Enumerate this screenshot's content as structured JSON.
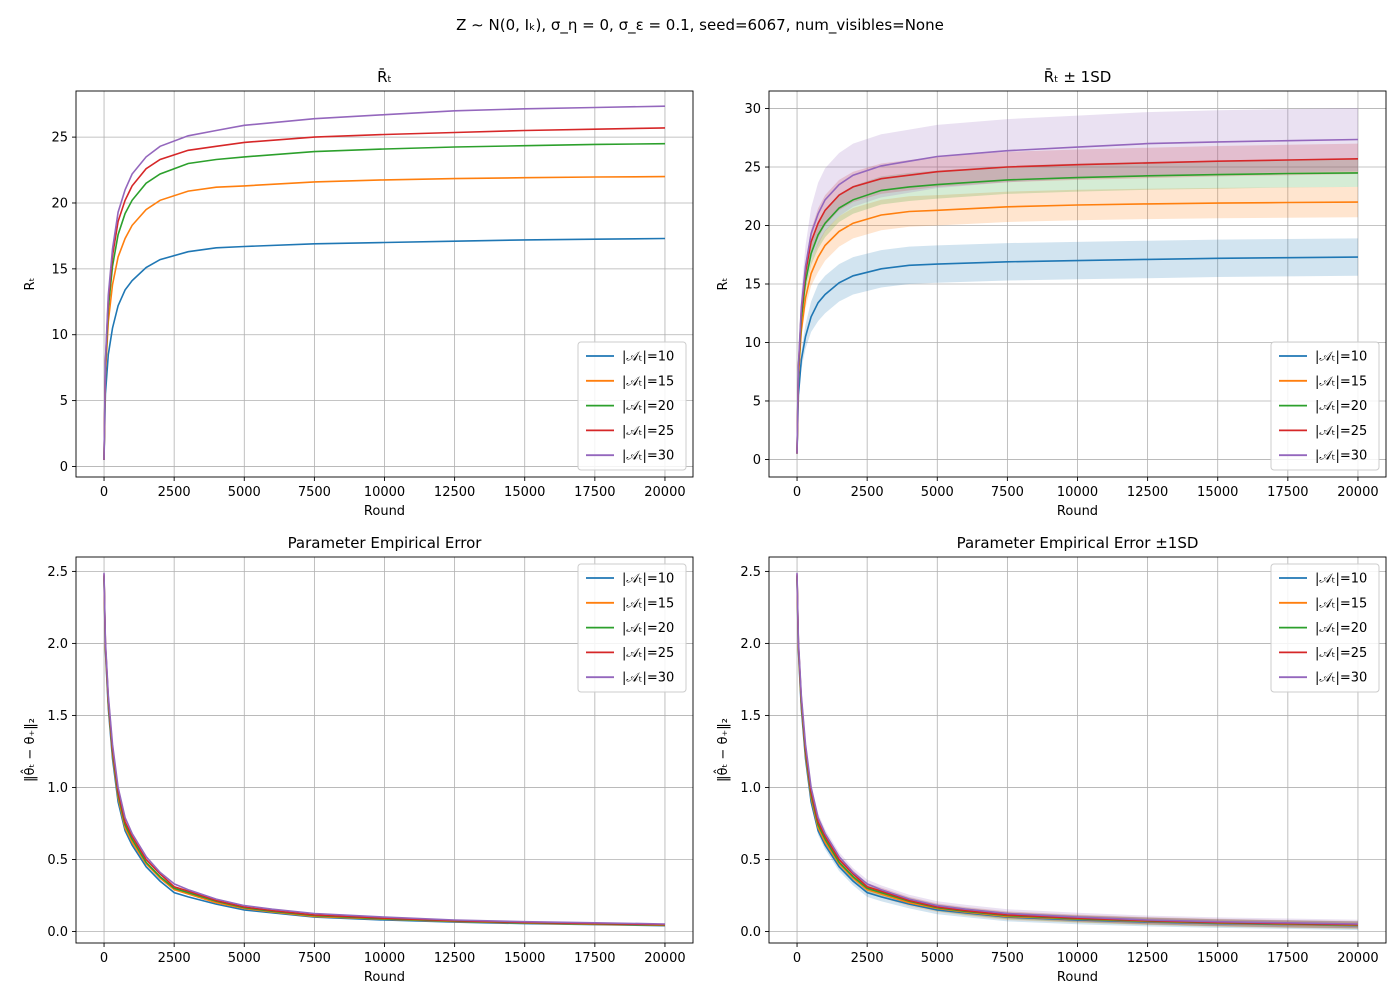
{
  "suptitle": "Z ∼ N(0, Iₖ), σ_η = 0, σ_ε = 0.1, seed=6067, num_visibles=None",
  "colors": [
    "#1f77b4",
    "#ff7f0e",
    "#2ca02c",
    "#d62728",
    "#9467bd"
  ],
  "chart_data": [
    {
      "type": "line",
      "title": "R̄ₜ",
      "xlabel": "Round",
      "ylabel": "Rₜ",
      "xlim": [
        -1000,
        21000
      ],
      "ylim": [
        -0.8,
        28.5
      ],
      "xticks": [
        0,
        2500,
        5000,
        7500,
        10000,
        12500,
        15000,
        17500,
        20000
      ],
      "yticks": [
        0,
        5,
        10,
        15,
        20,
        25
      ],
      "grid": true,
      "legend": "lower-right",
      "band": false,
      "x": [
        0,
        50,
        150,
        300,
        500,
        750,
        1000,
        1500,
        2000,
        3000,
        4000,
        5000,
        7500,
        10000,
        12500,
        15000,
        17500,
        20000
      ],
      "series": [
        {
          "name": "|𝒜ₜ|=10",
          "values": [
            0.5,
            5.5,
            8.5,
            10.5,
            12.2,
            13.4,
            14.1,
            15.1,
            15.7,
            16.3,
            16.6,
            16.7,
            16.9,
            17.0,
            17.1,
            17.2,
            17.25,
            17.3
          ]
        },
        {
          "name": "|𝒜ₜ|=15",
          "values": [
            0.5,
            7.0,
            11.0,
            13.8,
            15.9,
            17.3,
            18.3,
            19.5,
            20.2,
            20.9,
            21.2,
            21.3,
            21.6,
            21.75,
            21.85,
            21.92,
            21.97,
            22.0
          ]
        },
        {
          "name": "|𝒜ₜ|=20",
          "values": [
            0.5,
            7.5,
            12.0,
            15.2,
            17.6,
            19.2,
            20.2,
            21.5,
            22.2,
            23.0,
            23.3,
            23.5,
            23.9,
            24.1,
            24.25,
            24.35,
            24.45,
            24.5
          ]
        },
        {
          "name": "|𝒜ₜ|=25",
          "values": [
            0.5,
            7.8,
            12.6,
            16.0,
            18.6,
            20.2,
            21.3,
            22.6,
            23.3,
            24.0,
            24.3,
            24.6,
            25.0,
            25.2,
            25.35,
            25.5,
            25.6,
            25.7
          ]
        },
        {
          "name": "|𝒜ₜ|=30",
          "values": [
            0.5,
            8.0,
            13.0,
            16.5,
            19.3,
            21.0,
            22.2,
            23.5,
            24.3,
            25.1,
            25.5,
            25.9,
            26.4,
            26.7,
            27.0,
            27.15,
            27.25,
            27.35
          ]
        }
      ]
    },
    {
      "type": "line",
      "title": "R̄ₜ ± 1SD",
      "xlabel": "Round",
      "ylabel": "Rₜ",
      "xlim": [
        -1000,
        21000
      ],
      "ylim": [
        -1.5,
        31.5
      ],
      "xticks": [
        0,
        2500,
        5000,
        7500,
        10000,
        12500,
        15000,
        17500,
        20000
      ],
      "yticks": [
        0,
        5,
        10,
        15,
        20,
        25,
        30
      ],
      "grid": true,
      "legend": "lower-right",
      "band": true,
      "band_sd": [
        1.6,
        1.3,
        1.2,
        1.3,
        2.7
      ],
      "x": [
        0,
        50,
        150,
        300,
        500,
        750,
        1000,
        1500,
        2000,
        3000,
        4000,
        5000,
        7500,
        10000,
        12500,
        15000,
        17500,
        20000
      ],
      "series": [
        {
          "name": "|𝒜ₜ|=10",
          "values": [
            0.5,
            5.5,
            8.5,
            10.5,
            12.2,
            13.4,
            14.1,
            15.1,
            15.7,
            16.3,
            16.6,
            16.7,
            16.9,
            17.0,
            17.1,
            17.2,
            17.25,
            17.3
          ]
        },
        {
          "name": "|𝒜ₜ|=15",
          "values": [
            0.5,
            7.0,
            11.0,
            13.8,
            15.9,
            17.3,
            18.3,
            19.5,
            20.2,
            20.9,
            21.2,
            21.3,
            21.6,
            21.75,
            21.85,
            21.92,
            21.97,
            22.0
          ]
        },
        {
          "name": "|𝒜ₜ|=20",
          "values": [
            0.5,
            7.5,
            12.0,
            15.2,
            17.6,
            19.2,
            20.2,
            21.5,
            22.2,
            23.0,
            23.3,
            23.5,
            23.9,
            24.1,
            24.25,
            24.35,
            24.45,
            24.5
          ]
        },
        {
          "name": "|𝒜ₜ|=25",
          "values": [
            0.5,
            7.8,
            12.6,
            16.0,
            18.6,
            20.2,
            21.3,
            22.6,
            23.3,
            24.0,
            24.3,
            24.6,
            25.0,
            25.2,
            25.35,
            25.5,
            25.6,
            25.7
          ]
        },
        {
          "name": "|𝒜ₜ|=30",
          "values": [
            0.5,
            8.0,
            13.0,
            16.5,
            19.3,
            21.0,
            22.2,
            23.5,
            24.3,
            25.1,
            25.5,
            25.9,
            26.4,
            26.7,
            27.0,
            27.15,
            27.25,
            27.35
          ]
        }
      ]
    },
    {
      "type": "line",
      "title": "Parameter Empirical Error",
      "xlabel": "Round",
      "ylabel": "‖θ̂ₜ − θ₊‖₂",
      "xlim": [
        -1000,
        21000
      ],
      "ylim": [
        -0.08,
        2.6
      ],
      "xticks": [
        0,
        2500,
        5000,
        7500,
        10000,
        12500,
        15000,
        17500,
        20000
      ],
      "yticks": [
        0.0,
        0.5,
        1.0,
        1.5,
        2.0,
        2.5
      ],
      "grid": true,
      "legend": "upper-right",
      "band": false,
      "x": [
        0,
        50,
        150,
        300,
        500,
        750,
        1000,
        1500,
        2000,
        2500,
        3000,
        4000,
        5000,
        6000,
        7500,
        10000,
        12500,
        15000,
        17500,
        20000
      ],
      "series": [
        {
          "name": "|𝒜ₜ|=10",
          "values": [
            2.45,
            1.95,
            1.55,
            1.2,
            0.9,
            0.7,
            0.6,
            0.45,
            0.35,
            0.27,
            0.24,
            0.19,
            0.15,
            0.13,
            0.1,
            0.08,
            0.065,
            0.055,
            0.048,
            0.04
          ]
        },
        {
          "name": "|𝒜ₜ|=15",
          "values": [
            2.46,
            1.97,
            1.58,
            1.23,
            0.93,
            0.72,
            0.62,
            0.47,
            0.37,
            0.29,
            0.26,
            0.2,
            0.16,
            0.135,
            0.105,
            0.085,
            0.07,
            0.058,
            0.05,
            0.043
          ]
        },
        {
          "name": "|𝒜ₜ|=20",
          "values": [
            2.47,
            1.99,
            1.6,
            1.25,
            0.95,
            0.74,
            0.64,
            0.48,
            0.38,
            0.3,
            0.27,
            0.21,
            0.165,
            0.14,
            0.11,
            0.088,
            0.072,
            0.06,
            0.052,
            0.045
          ]
        },
        {
          "name": "|𝒜ₜ|=25",
          "values": [
            2.48,
            2.0,
            1.62,
            1.27,
            0.97,
            0.76,
            0.66,
            0.5,
            0.4,
            0.31,
            0.28,
            0.215,
            0.17,
            0.145,
            0.115,
            0.092,
            0.075,
            0.063,
            0.055,
            0.048
          ]
        },
        {
          "name": "|𝒜ₜ|=30",
          "values": [
            2.49,
            2.02,
            1.64,
            1.3,
            1.0,
            0.79,
            0.68,
            0.52,
            0.41,
            0.33,
            0.29,
            0.225,
            0.18,
            0.155,
            0.125,
            0.1,
            0.08,
            0.068,
            0.06,
            0.052
          ]
        }
      ]
    },
    {
      "type": "line",
      "title": "Parameter Empirical Error ±1SD",
      "xlabel": "Round",
      "ylabel": "‖θ̂ₜ − θ₊‖₂",
      "xlim": [
        -1000,
        21000
      ],
      "ylim": [
        -0.08,
        2.6
      ],
      "xticks": [
        0,
        2500,
        5000,
        7500,
        10000,
        12500,
        15000,
        17500,
        20000
      ],
      "yticks": [
        0.0,
        0.5,
        1.0,
        1.5,
        2.0,
        2.5
      ],
      "grid": true,
      "legend": "upper-right",
      "band": true,
      "band_sd": [
        0.03,
        0.025,
        0.025,
        0.025,
        0.03
      ],
      "x": [
        0,
        50,
        150,
        300,
        500,
        750,
        1000,
        1500,
        2000,
        2500,
        3000,
        4000,
        5000,
        6000,
        7500,
        10000,
        12500,
        15000,
        17500,
        20000
      ],
      "series": [
        {
          "name": "|𝒜ₜ|=10",
          "values": [
            2.45,
            1.95,
            1.55,
            1.2,
            0.9,
            0.7,
            0.6,
            0.45,
            0.35,
            0.27,
            0.24,
            0.19,
            0.15,
            0.13,
            0.1,
            0.08,
            0.065,
            0.055,
            0.048,
            0.04
          ]
        },
        {
          "name": "|𝒜ₜ|=15",
          "values": [
            2.46,
            1.97,
            1.58,
            1.23,
            0.93,
            0.72,
            0.62,
            0.47,
            0.37,
            0.29,
            0.26,
            0.2,
            0.16,
            0.135,
            0.105,
            0.085,
            0.07,
            0.058,
            0.05,
            0.043
          ]
        },
        {
          "name": "|𝒜ₜ|=20",
          "values": [
            2.47,
            1.99,
            1.6,
            1.25,
            0.95,
            0.74,
            0.64,
            0.48,
            0.38,
            0.3,
            0.27,
            0.21,
            0.165,
            0.14,
            0.11,
            0.088,
            0.072,
            0.06,
            0.052,
            0.045
          ]
        },
        {
          "name": "|𝒜ₜ|=25",
          "values": [
            2.48,
            2.0,
            1.62,
            1.27,
            0.97,
            0.76,
            0.66,
            0.5,
            0.4,
            0.31,
            0.28,
            0.215,
            0.17,
            0.145,
            0.115,
            0.092,
            0.075,
            0.063,
            0.055,
            0.048
          ]
        },
        {
          "name": "|𝒜ₜ|=30",
          "values": [
            2.49,
            2.02,
            1.64,
            1.3,
            1.0,
            0.79,
            0.68,
            0.52,
            0.41,
            0.33,
            0.29,
            0.225,
            0.18,
            0.155,
            0.125,
            0.1,
            0.08,
            0.068,
            0.06,
            0.052
          ]
        }
      ]
    }
  ]
}
